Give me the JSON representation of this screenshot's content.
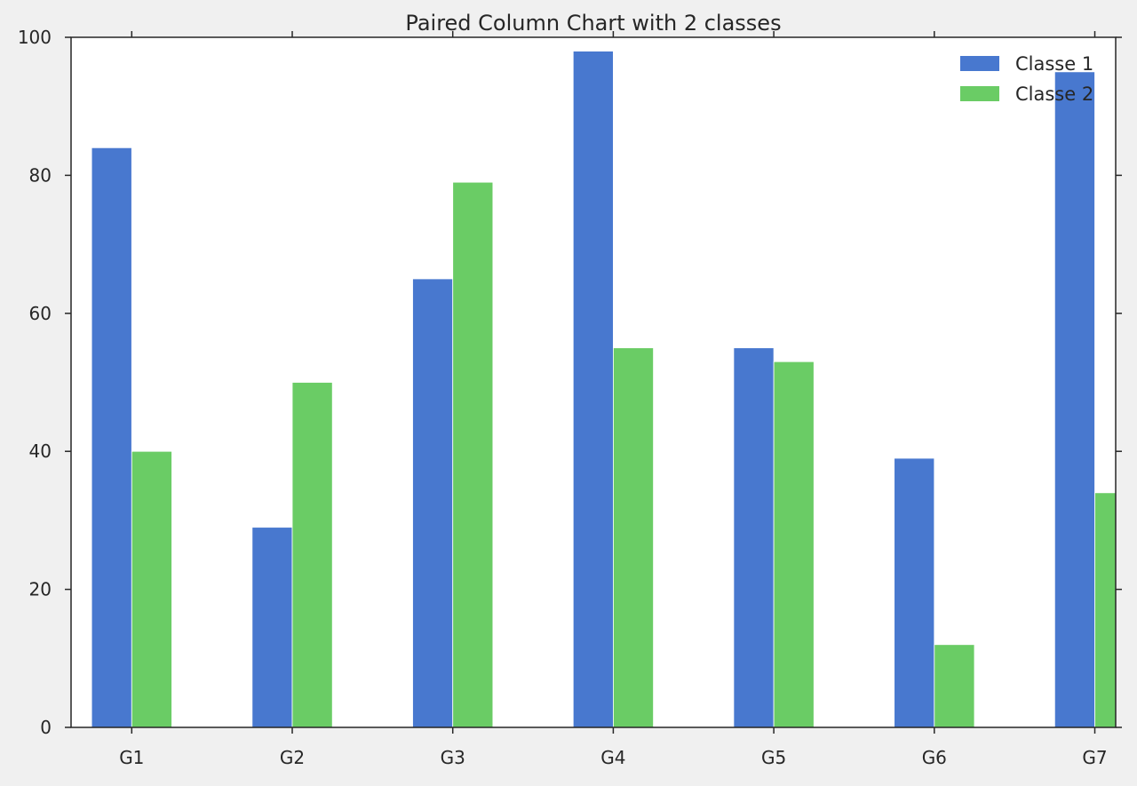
{
  "chart_data": {
    "type": "bar",
    "title": "Paired Column Chart with 2 classes",
    "xlabel": "",
    "ylabel": "",
    "categories": [
      "G1",
      "G2",
      "G3",
      "G4",
      "G5",
      "G6",
      "G7"
    ],
    "series": [
      {
        "name": "Classe 1",
        "values": [
          84,
          29,
          65,
          98,
          55,
          39,
          95
        ],
        "color": "#4878cf"
      },
      {
        "name": "Classe 2",
        "values": [
          40,
          50,
          79,
          55,
          53,
          12,
          34
        ],
        "color": "#6acc65"
      }
    ],
    "ylim": [
      0,
      100
    ],
    "yticks": [
      0,
      20,
      40,
      60,
      80,
      100
    ],
    "grid": false,
    "legend_position": "top-right",
    "background_color": "#f0f0f0",
    "plot_background_color": "#ffffff",
    "axis_color": "#262626"
  }
}
